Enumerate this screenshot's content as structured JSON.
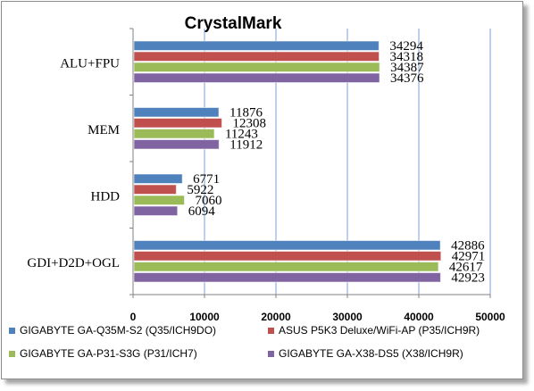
{
  "chart_data": {
    "type": "bar",
    "orientation": "horizontal",
    "title": "CrystalMark",
    "categories": [
      "ALU+FPU",
      "MEM",
      "HDD",
      "GDI+D2D+OGL"
    ],
    "series": [
      {
        "name": "GIGABYTE GA-Q35M-S2 (Q35/ICH9DO)",
        "color": "#4f81bd",
        "values": [
          34294,
          11876,
          6771,
          42886
        ]
      },
      {
        "name": "ASUS P5K3 Deluxe/WiFi-AP (P35/ICH9R)",
        "color": "#c0504d",
        "values": [
          34318,
          12308,
          5922,
          42971
        ]
      },
      {
        "name": "GIGABYTE GA-P31-S3G (P31/ICH7)",
        "color": "#9bbb59",
        "values": [
          34387,
          11243,
          7060,
          42617
        ]
      },
      {
        "name": "GIGABYTE GA-X38-DS5 (X38/ICH9R)",
        "color": "#8064a2",
        "values": [
          34376,
          11912,
          6094,
          42923
        ]
      }
    ],
    "xlim": [
      0,
      50000
    ],
    "xticks": [
      0,
      10000,
      20000,
      30000,
      40000,
      50000
    ],
    "grid": "vertical",
    "legend": "bottom"
  }
}
